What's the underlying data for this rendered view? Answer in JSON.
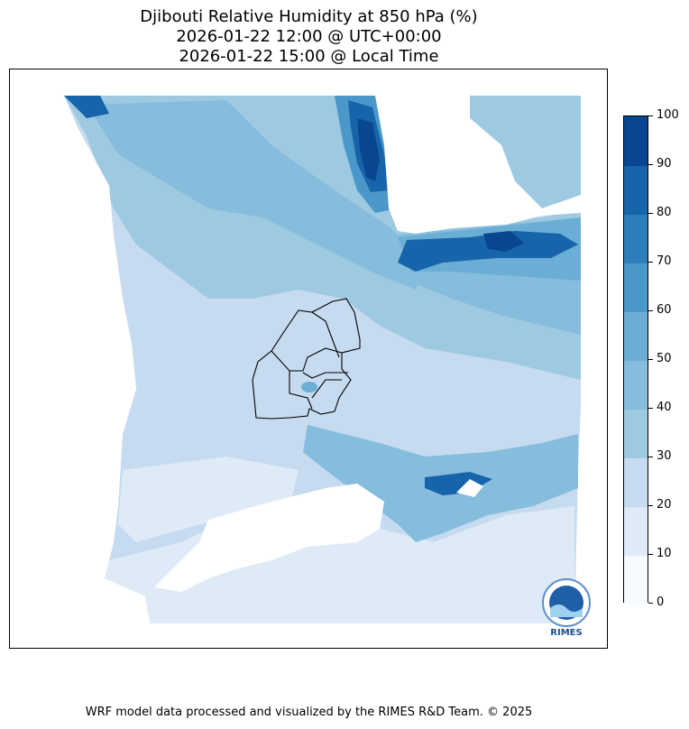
{
  "title": {
    "line1": "Djibouti Relative Humidity at 850 hPa (%)",
    "line2": "2026-01-22 12:00 @ UTC+00:00",
    "line3": "2026-01-22 15:00 @ Local Time"
  },
  "colorbar": {
    "ticks": [
      "0",
      "10",
      "20",
      "30",
      "40",
      "50",
      "60",
      "70",
      "80",
      "90",
      "100"
    ],
    "colors": [
      "#f7fbff",
      "#deebf7",
      "#c6dbef",
      "#9ecae1",
      "#86bcdc",
      "#6aaed6",
      "#4a98c9",
      "#2e7ebc",
      "#1764ab",
      "#08468f"
    ]
  },
  "logo": {
    "text": "RIMES"
  },
  "footer": "WRF model data processed and visualized by the RIMES R&D Team. © 2025"
}
